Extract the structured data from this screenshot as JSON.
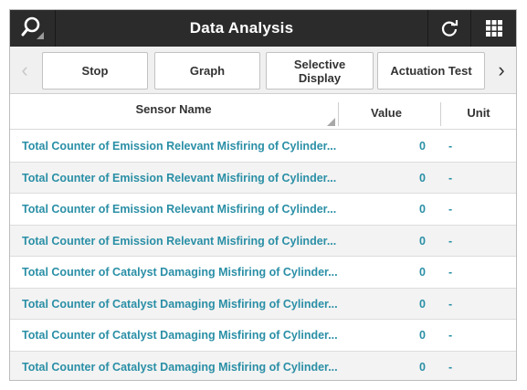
{
  "header": {
    "title": "Data Analysis",
    "icons": [
      "search-icon",
      "refresh-icon",
      "grid-menu-icon"
    ]
  },
  "toolbar": {
    "stop_label": "Stop",
    "graph_label": "Graph",
    "selective_label": "Selective\nDisplay",
    "actuation_label": "Actuation Test",
    "prev_arrow": "‹",
    "next_arrow": "›"
  },
  "table": {
    "columns": {
      "name": "Sensor Name",
      "value": "Value",
      "unit": "Unit"
    },
    "rows": [
      {
        "name": "Total Counter of Emission Relevant Misfiring of Cylinder...",
        "value": "0",
        "unit": "-"
      },
      {
        "name": "Total Counter of Emission Relevant Misfiring of Cylinder...",
        "value": "0",
        "unit": "-"
      },
      {
        "name": "Total Counter of Emission Relevant Misfiring of Cylinder...",
        "value": "0",
        "unit": "-"
      },
      {
        "name": "Total Counter of Emission Relevant Misfiring of Cylinder...",
        "value": "0",
        "unit": "-"
      },
      {
        "name": "Total Counter of Catalyst Damaging Misfiring of Cylinder...",
        "value": "0",
        "unit": "-"
      },
      {
        "name": "Total Counter of Catalyst Damaging Misfiring of Cylinder...",
        "value": "0",
        "unit": "-"
      },
      {
        "name": "Total Counter of Catalyst Damaging Misfiring of Cylinder...",
        "value": "0",
        "unit": "-"
      },
      {
        "name": "Total Counter of Catalyst Damaging Misfiring of Cylinder...",
        "value": "0",
        "unit": "-"
      }
    ]
  },
  "colors": {
    "header_bg": "#2b2b2b",
    "row_text": "#2a8fa6",
    "toolbar_bg": "#f0f0f0"
  }
}
